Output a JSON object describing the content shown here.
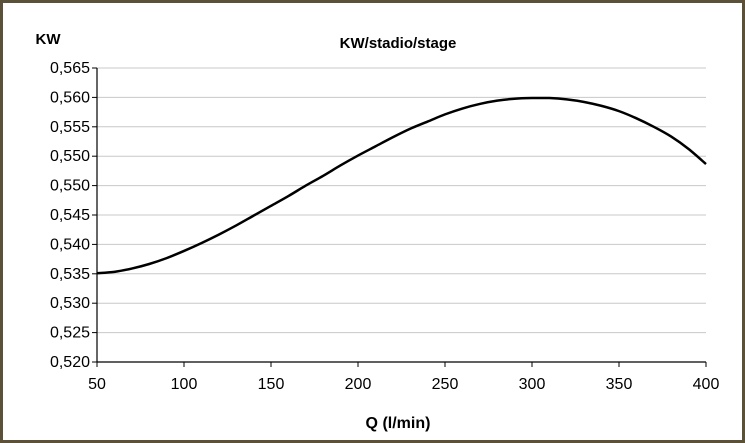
{
  "chart_data": {
    "type": "line",
    "title": "KW/stadio/stage",
    "xlabel": "Q (l/min)",
    "ylabel": "KW",
    "xlim": [
      50,
      400
    ],
    "x_ticks": [
      "50",
      "100",
      "150",
      "200",
      "250",
      "300",
      "350",
      "400"
    ],
    "y_ticks": [
      "0,565",
      "0,560",
      "0,555",
      "0,550",
      "0,550",
      "0,545",
      "0,540",
      "0,535",
      "0,530",
      "0,525",
      "0,520"
    ],
    "grid": "horizontal",
    "colors": {
      "line": "#000000",
      "grid": "#c8c8c8",
      "frame": "#5b5038"
    },
    "series": [
      {
        "x": [
          50,
          60,
          70,
          80,
          90,
          100,
          110,
          120,
          130,
          140,
          150,
          160,
          170,
          180,
          190,
          200,
          210,
          220,
          230,
          240,
          250,
          260,
          270,
          280,
          290,
          300,
          310,
          320,
          330,
          340,
          350,
          360,
          370,
          380,
          390,
          400
        ],
        "y": [
          0.5336,
          0.5338,
          0.5343,
          0.535,
          0.5359,
          0.537,
          0.5382,
          0.5395,
          0.5409,
          0.5424,
          0.5439,
          0.5454,
          0.547,
          0.5485,
          0.5501,
          0.5516,
          0.553,
          0.5544,
          0.5557,
          0.5568,
          0.5579,
          0.5588,
          0.5595,
          0.56,
          0.5603,
          0.5604,
          0.5604,
          0.5602,
          0.5598,
          0.5592,
          0.5584,
          0.5573,
          0.556,
          0.5545,
          0.5526,
          0.5503
        ]
      }
    ]
  }
}
